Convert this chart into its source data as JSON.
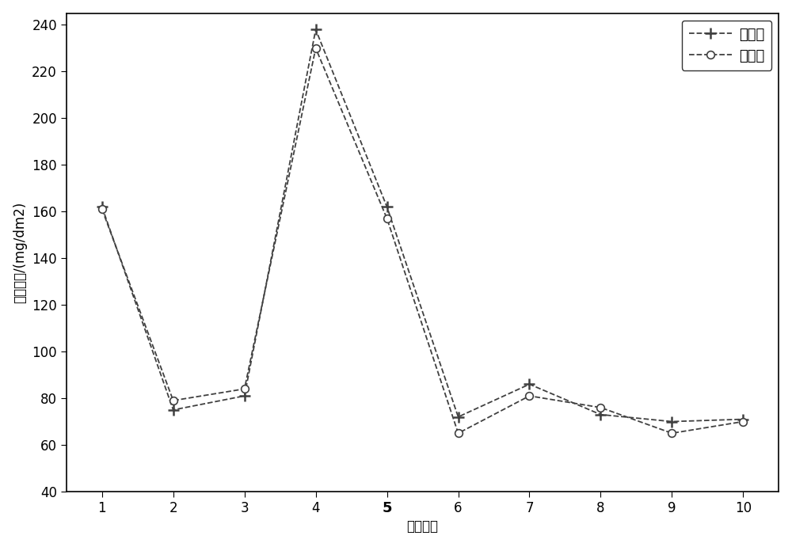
{
  "x": [
    1,
    2,
    3,
    4,
    5,
    6,
    7,
    8,
    9,
    10
  ],
  "actual_values": [
    162,
    75,
    81,
    238,
    162,
    72,
    86,
    73,
    70,
    71
  ],
  "predicted_values": [
    161,
    79,
    84,
    230,
    157,
    65,
    81,
    76,
    65,
    70
  ],
  "xlabel": "实验组号",
  "ylabel": "腹蚀增量/(mg/dm2)",
  "legend_actual": "实测値",
  "legend_predicted": "预测値",
  "ylim": [
    40,
    245
  ],
  "yticks": [
    40,
    60,
    80,
    100,
    120,
    140,
    160,
    180,
    200,
    220,
    240
  ],
  "xticks": [
    1,
    2,
    3,
    4,
    5,
    6,
    7,
    8,
    9,
    10
  ],
  "line_color": "#404040",
  "linestyle": "--",
  "actual_marker": "+",
  "predicted_marker": "o",
  "marker_size_actual": 10,
  "marker_size_predicted": 7,
  "linewidth": 1.3,
  "background_color": "#ffffff",
  "legend_fontsize": 13,
  "axis_label_fontsize": 12,
  "tick_fontsize": 12
}
